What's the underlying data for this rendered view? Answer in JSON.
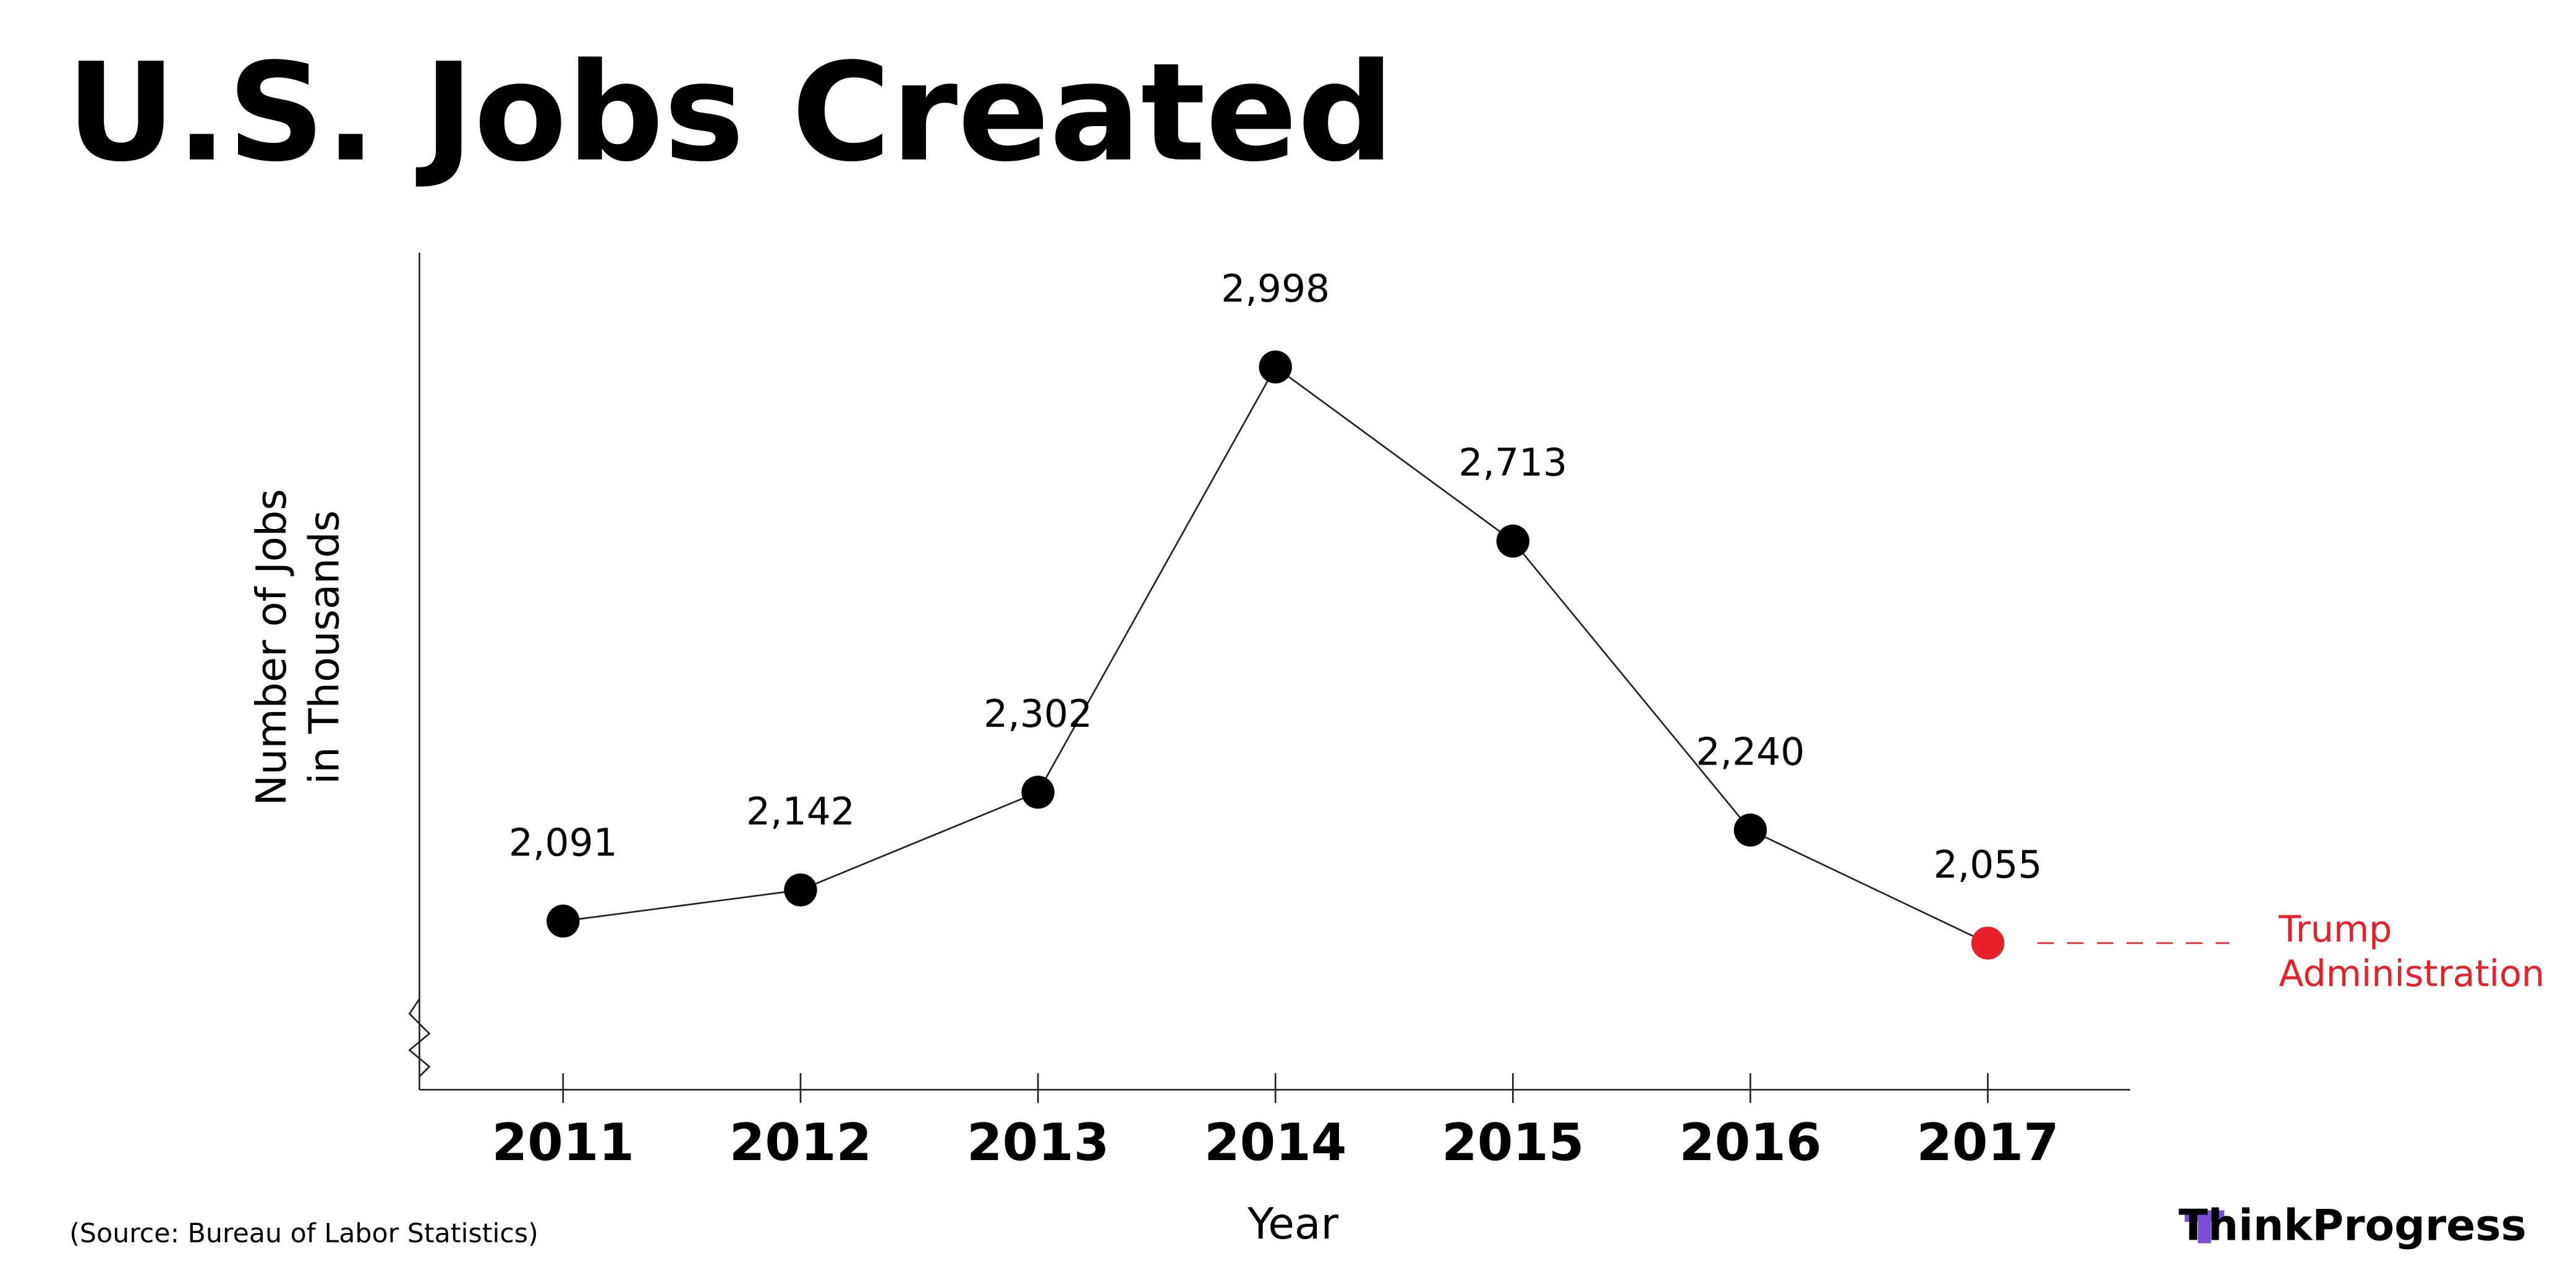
{
  "chart_data": {
    "type": "line",
    "title": "U.S. Jobs Created",
    "xlabel": "Year",
    "ylabel": [
      "Number of Jobs",
      "in Thousands"
    ],
    "categories": [
      "2011",
      "2012",
      "2013",
      "2014",
      "2015",
      "2016",
      "2017"
    ],
    "values": [
      2091,
      2142,
      2302,
      2998,
      2713,
      2240,
      2055
    ],
    "value_labels": [
      "2,091",
      "2,142",
      "2,302",
      "2,998",
      "2,713",
      "2,240",
      "2,055"
    ],
    "color": "#222222",
    "point_colors": [
      "#000000",
      "#000000",
      "#000000",
      "#000000",
      "#000000",
      "#000000",
      "#e8202a"
    ],
    "ylim": [
      1815,
      3185
    ],
    "annotation": [
      "Trump",
      "Administration"
    ],
    "annotation_color": "#e8202a",
    "source": "(Source: Bureau of Labor Statistics)",
    "brand": "ThinkProgress"
  }
}
